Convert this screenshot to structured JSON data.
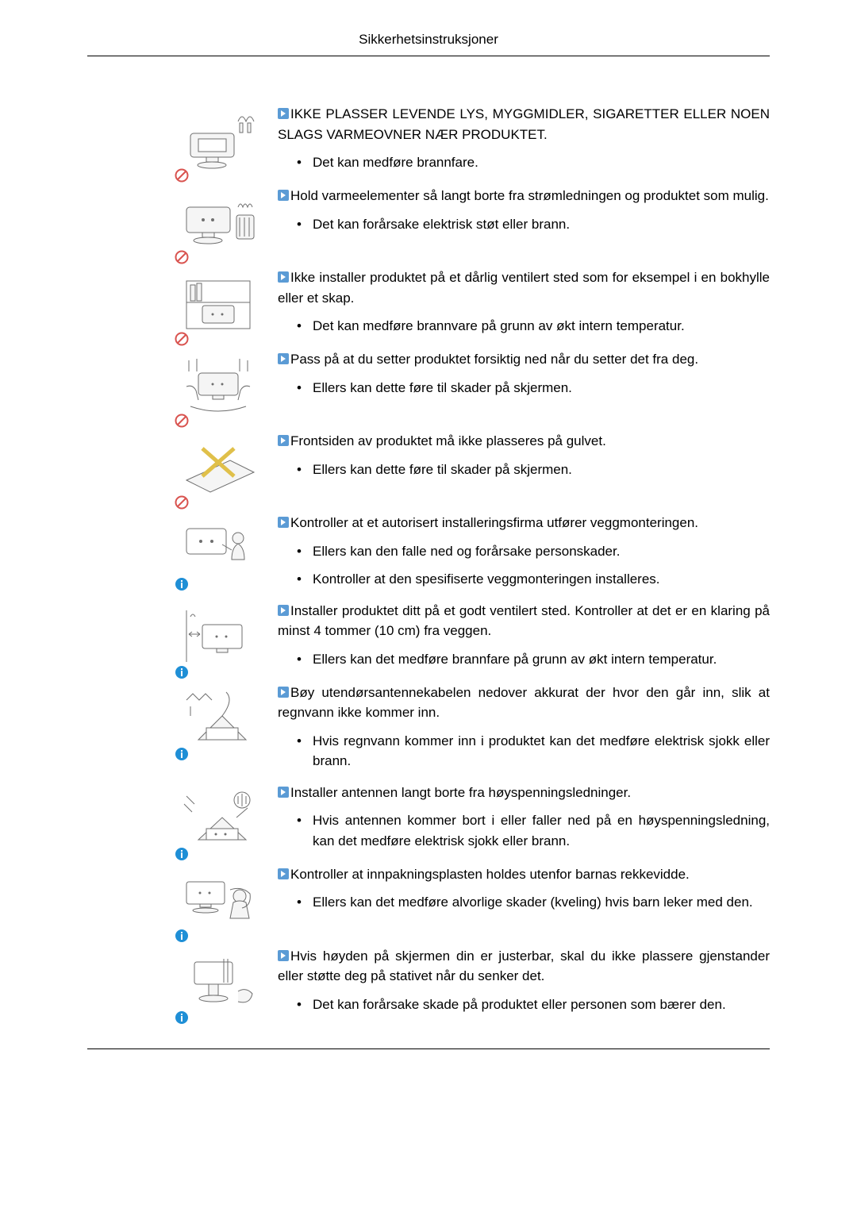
{
  "header": {
    "title": "Sikkerhetsinstruksjoner"
  },
  "icons": {
    "bullet_color": "#5b9bd5",
    "bullet_arrow": "#ffffff",
    "prohibit_ring": "#d9534f",
    "info_fill": "#1f8fd6",
    "line_color": "#6f6f6f",
    "fill_color": "#f5f5f5"
  },
  "items": [
    {
      "badge": "prohibit",
      "main": "IKKE PLASSER LEVENDE LYS, MYGGMIDLER, SIGARETTER ELLER NOEN SLAGS VARMEOVNER NÆR PRODUKTET.",
      "bullets": [
        "Det kan medføre brannfare."
      ]
    },
    {
      "badge": "prohibit",
      "main": "Hold varmeelementer så langt borte fra strømledningen og produktet som mulig.",
      "bullets": [
        "Det kan forårsake elektrisk støt eller brann."
      ]
    },
    {
      "badge": "prohibit",
      "main": "Ikke installer produktet på et dårlig ventilert sted som for eksempel i en bokhylle eller et skap.",
      "bullets": [
        "Det kan medføre brannvare på grunn av økt intern temperatur."
      ]
    },
    {
      "badge": "prohibit",
      "main": "Pass på at du setter produktet forsiktig ned når du setter det fra deg.",
      "bullets": [
        "Ellers kan dette føre til skader på skjermen."
      ]
    },
    {
      "badge": "prohibit",
      "main": "Frontsiden av produktet må ikke plasseres på gulvet.",
      "bullets": [
        "Ellers kan dette føre til skader på skjermen."
      ]
    },
    {
      "badge": "info",
      "main": "Kontroller at et autorisert installeringsfirma utfører veggmonteringen.",
      "bullets": [
        "Ellers kan den falle ned og forårsake personskader.",
        "Kontroller at den spesifiserte veggmonteringen installeres."
      ]
    },
    {
      "badge": "info",
      "main": "Installer produktet ditt på et godt ventilert sted. Kontroller at det er en klaring på minst 4 tommer (10 cm) fra veggen.",
      "bullets": [
        "Ellers kan det medføre brannfare på grunn av økt intern temperatur."
      ]
    },
    {
      "badge": "info",
      "main": "Bøy utendørsantennekabelen nedover akkurat der hvor den går inn, slik at regnvann ikke kommer inn.",
      "bullets": [
        "Hvis regnvann kommer inn i produktet kan det medføre elektrisk sjokk eller brann."
      ]
    },
    {
      "badge": "info",
      "main": "Installer antennen langt borte fra høyspenningsledninger.",
      "bullets": [
        "Hvis antennen kommer bort i eller faller ned på en høyspenningsledning, kan det medføre elektrisk sjokk eller brann."
      ]
    },
    {
      "badge": "info",
      "main": "Kontroller at innpakningsplasten holdes utenfor barnas rekkevidde.",
      "bullets": [
        "Ellers kan det medføre alvorlige skader (kveling) hvis barn leker med den."
      ]
    },
    {
      "badge": "info",
      "main": "Hvis høyden på skjermen din er justerbar, skal du ikke plassere gjenstander eller støtte deg på stativet når du senker det.",
      "bullets": [
        "Det kan forårsake skade på produktet eller personen som bærer den."
      ]
    }
  ]
}
